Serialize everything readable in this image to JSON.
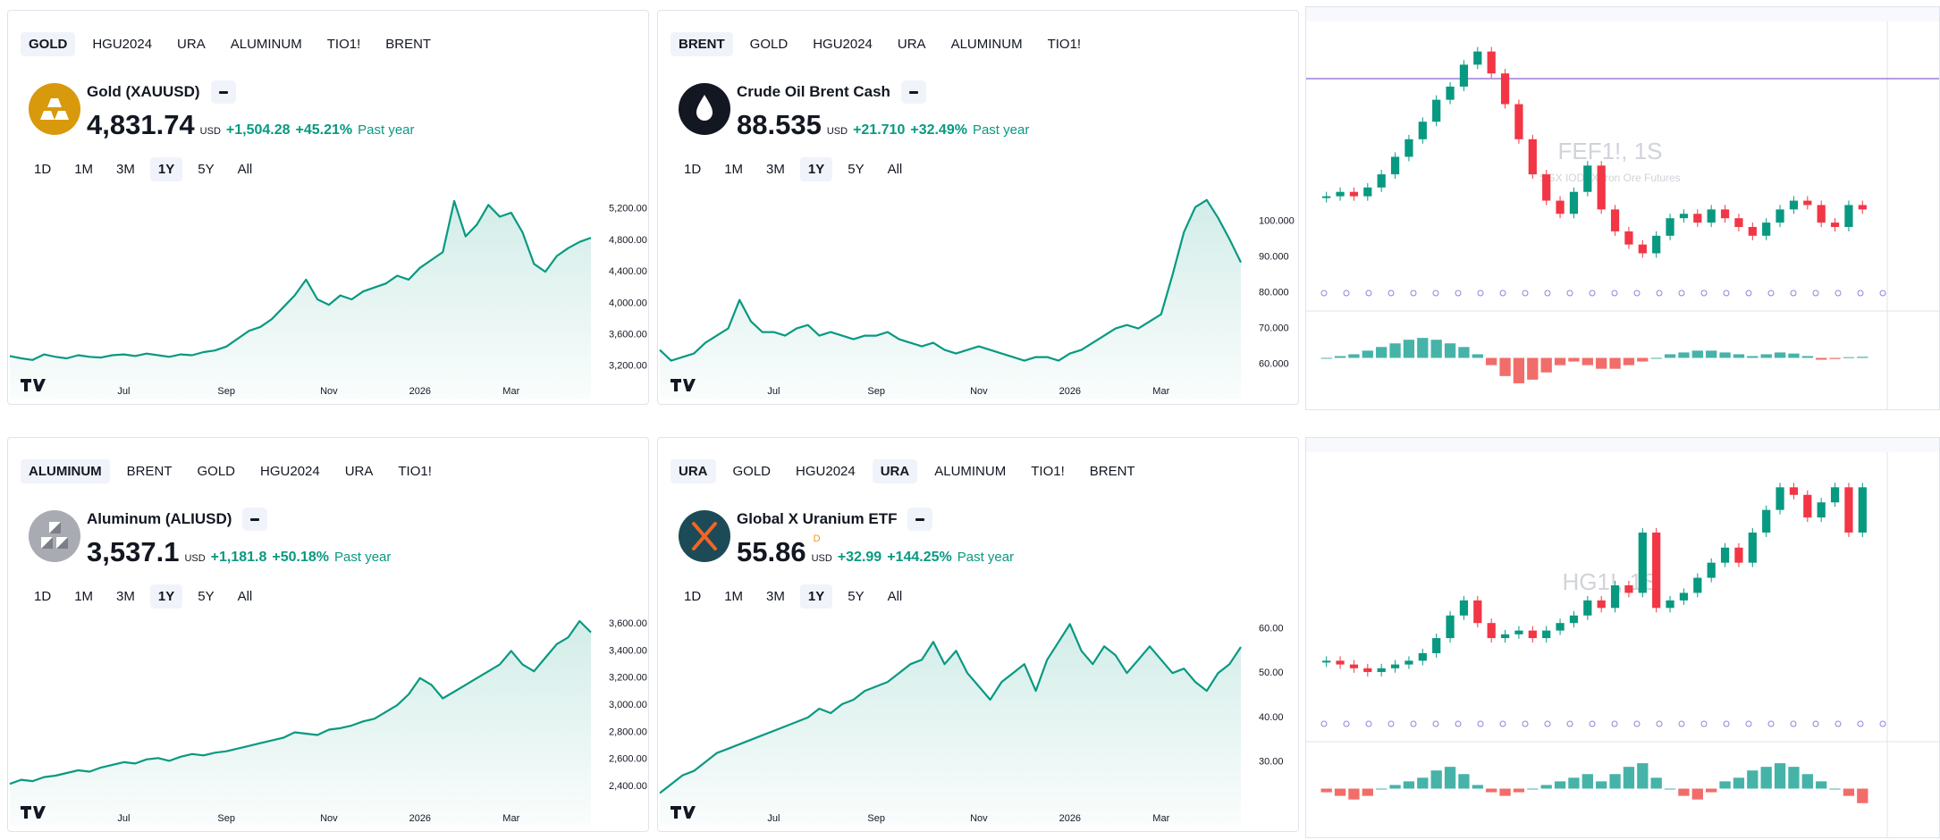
{
  "widgets": [
    {
      "tabs": [
        "GOLD",
        "HGU2024",
        "URA",
        "ALUMINUM",
        "TIO1!",
        "BRENT"
      ],
      "active_tabs": [
        0
      ],
      "name": "Gold (XAUUSD)",
      "price": "4,831.74",
      "currency": "USD",
      "change": "+1,504.28",
      "change_percent": "+45.21%",
      "period": "Past year",
      "ranges": [
        "1D",
        "1M",
        "3M",
        "1Y",
        "5Y",
        "All"
      ],
      "active_range": 3,
      "icon": "gold",
      "chart": {
        "type": "area",
        "color": "#089981",
        "categories": [
          null,
          null,
          null,
          null,
          null,
          null,
          null,
          null,
          null,
          null,
          "Jul",
          null,
          null,
          null,
          null,
          null,
          null,
          null,
          null,
          "Sep",
          null,
          null,
          null,
          null,
          null,
          null,
          null,
          null,
          "Nov",
          null,
          null,
          null,
          null,
          null,
          null,
          null,
          "2026",
          null,
          null,
          null,
          null,
          null,
          null,
          null,
          "Mar",
          null,
          null,
          null,
          null,
          null,
          null,
          null
        ],
        "values": [
          3330,
          3300,
          3280,
          3350,
          3320,
          3300,
          3340,
          3320,
          3310,
          3340,
          3350,
          3330,
          3360,
          3340,
          3320,
          3350,
          3340,
          3380,
          3400,
          3450,
          3550,
          3650,
          3700,
          3800,
          3950,
          4100,
          4300,
          4050,
          3980,
          4100,
          4050,
          4150,
          4200,
          4250,
          4350,
          4300,
          4450,
          4550,
          4650,
          5300,
          4850,
          5000,
          5250,
          5100,
          5150,
          4900,
          4500,
          4400,
          4600,
          4700,
          4780,
          4831.74
        ],
        "ylim": [
          3130,
          5480
        ],
        "yticks": [
          {
            "value": 3200,
            "label": "3,200.00"
          },
          {
            "value": 3600,
            "label": "3,600.00"
          },
          {
            "value": 4000,
            "label": "4,000.00"
          },
          {
            "value": 4400,
            "label": "4,400.00"
          },
          {
            "value": 4800,
            "label": "4,800.00"
          },
          {
            "value": 5200,
            "label": "5,200.00"
          }
        ]
      }
    },
    {
      "tabs": [
        "BRENT",
        "GOLD",
        "HGU2024",
        "URA",
        "ALUMINUM",
        "TIO1!"
      ],
      "active_tabs": [
        0
      ],
      "name": "Crude Oil Brent Cash",
      "price": "88.535",
      "currency": "USD",
      "change": "+21.710",
      "change_percent": "+32.49%",
      "period": "Past year",
      "ranges": [
        "1D",
        "1M",
        "3M",
        "1Y",
        "5Y",
        "All"
      ],
      "active_range": 3,
      "icon": "brent",
      "chart": {
        "type": "area",
        "color": "#089981",
        "categories": [
          null,
          null,
          null,
          null,
          null,
          null,
          null,
          null,
          null,
          null,
          "Jul",
          null,
          null,
          null,
          null,
          null,
          null,
          null,
          null,
          "Sep",
          null,
          null,
          null,
          null,
          null,
          null,
          null,
          null,
          "Nov",
          null,
          null,
          null,
          null,
          null,
          null,
          null,
          "2026",
          null,
          null,
          null,
          null,
          null,
          null,
          null,
          "Mar",
          null,
          null,
          null,
          null,
          null,
          null,
          null
        ],
        "values": [
          64,
          61,
          62,
          63,
          66,
          68,
          70,
          78,
          72,
          69,
          69,
          68,
          70,
          71,
          68,
          69,
          68,
          67,
          68,
          68,
          69,
          67,
          66,
          65,
          66,
          64,
          63,
          64,
          65,
          64,
          63,
          62,
          61,
          62,
          62,
          61,
          63,
          64,
          66,
          68,
          70,
          71,
          70,
          72,
          74,
          85,
          97,
          104,
          106,
          101,
          95,
          88.535
        ],
        "ylim": [
          57.9,
          109.7
        ],
        "yticks": [
          {
            "value": 60,
            "label": "60.000"
          },
          {
            "value": 70,
            "label": "70.000"
          },
          {
            "value": 80,
            "label": "80.000"
          },
          {
            "value": 90,
            "label": "90.000"
          },
          {
            "value": 100,
            "label": "100.000"
          }
        ]
      }
    },
    {
      "tabs": [
        "ALUMINUM",
        "BRENT",
        "GOLD",
        "HGU2024",
        "URA",
        "TIO1!"
      ],
      "active_tabs": [
        0
      ],
      "name": "Aluminum (ALIUSD)",
      "price": "3,537.1",
      "currency": "USD",
      "change": "+1,181.8",
      "change_percent": "+50.18%",
      "period": "Past year",
      "ranges": [
        "1D",
        "1M",
        "3M",
        "1Y",
        "5Y",
        "All"
      ],
      "active_range": 3,
      "icon": "aluminum",
      "chart": {
        "type": "area",
        "color": "#089981",
        "categories": [
          null,
          null,
          null,
          null,
          null,
          null,
          null,
          null,
          null,
          null,
          "Jul",
          null,
          null,
          null,
          null,
          null,
          null,
          null,
          null,
          "Sep",
          null,
          null,
          null,
          null,
          null,
          null,
          null,
          null,
          "Nov",
          null,
          null,
          null,
          null,
          null,
          null,
          null,
          "2026",
          null,
          null,
          null,
          null,
          null,
          null,
          null,
          "Mar",
          null,
          null,
          null,
          null,
          null,
          null,
          null
        ],
        "values": [
          2420,
          2450,
          2440,
          2470,
          2480,
          2500,
          2520,
          2510,
          2540,
          2560,
          2580,
          2570,
          2600,
          2610,
          2590,
          2620,
          2640,
          2630,
          2650,
          2660,
          2680,
          2700,
          2720,
          2740,
          2760,
          2800,
          2790,
          2780,
          2820,
          2830,
          2850,
          2880,
          2900,
          2950,
          3000,
          3080,
          3200,
          3150,
          3050,
          3100,
          3150,
          3200,
          3250,
          3300,
          3400,
          3300,
          3250,
          3350,
          3450,
          3500,
          3620,
          3537.1
        ],
        "ylim": [
          2309,
          3673
        ],
        "yticks": [
          {
            "value": 2400,
            "label": "2,400.00"
          },
          {
            "value": 2600,
            "label": "2,600.00"
          },
          {
            "value": 2800,
            "label": "2,800.00"
          },
          {
            "value": 3000,
            "label": "3,000.00"
          },
          {
            "value": 3200,
            "label": "3,200.00"
          },
          {
            "value": 3400,
            "label": "3,400.00"
          },
          {
            "value": 3600,
            "label": "3,600.00"
          }
        ]
      }
    },
    {
      "tabs": [
        "URA",
        "GOLD",
        "HGU2024",
        "URA",
        "ALUMINUM",
        "TIO1!",
        "BRENT"
      ],
      "active_tabs": [
        0,
        3
      ],
      "name": "Global X Uranium ETF",
      "price": "55.86",
      "badge": "D",
      "currency": "USD",
      "change": "+32.99",
      "change_percent": "+144.25%",
      "period": "Past year",
      "ranges": [
        "1D",
        "1M",
        "3M",
        "1Y",
        "5Y",
        "All"
      ],
      "active_range": 3,
      "icon": "ura",
      "chart": {
        "type": "area",
        "color": "#089981",
        "categories": [
          null,
          null,
          null,
          null,
          null,
          null,
          null,
          null,
          null,
          null,
          "Jul",
          null,
          null,
          null,
          null,
          null,
          null,
          null,
          null,
          "Sep",
          null,
          null,
          null,
          null,
          null,
          null,
          null,
          null,
          "Nov",
          null,
          null,
          null,
          null,
          null,
          null,
          null,
          "2026",
          null,
          null,
          null,
          null,
          null,
          null,
          null,
          "Mar",
          null,
          null,
          null,
          null,
          null,
          null,
          null
        ],
        "values": [
          23,
          25,
          27,
          28,
          30,
          32,
          33,
          34,
          35,
          36,
          37,
          38,
          39,
          40,
          42,
          41,
          43,
          44,
          46,
          47,
          48,
          50,
          52,
          53,
          57,
          52,
          55,
          50,
          47,
          44,
          48,
          50,
          52,
          46,
          53,
          57,
          61,
          55,
          52,
          56,
          54,
          50,
          53,
          56,
          53,
          50,
          51,
          48,
          46,
          50,
          52,
          55.86
        ],
        "ylim": [
          21.7,
          63.3
        ],
        "yticks": [
          {
            "value": 30,
            "label": "30.00"
          },
          {
            "value": 40,
            "label": "40.00"
          },
          {
            "value": 50,
            "label": "50.00"
          },
          {
            "value": 60,
            "label": "60.00"
          }
        ]
      }
    }
  ],
  "panels": [
    {
      "watermark": "FEF1!, 1S",
      "subtitle": "SGX IODEX Iron Ore Futures",
      "chart": {
        "type": "candles",
        "up_color": "#089981",
        "down_color": "#f23645",
        "values": [
          103,
          104,
          103,
          105,
          108,
          112,
          116,
          120,
          125,
          128,
          133,
          136,
          131,
          124,
          116,
          108,
          102,
          99,
          104,
          110,
          100,
          95,
          92,
          90,
          94,
          98,
          99,
          97,
          100,
          98,
          96,
          94,
          97,
          100,
          102,
          101,
          97,
          96,
          101,
          100
        ],
        "ylim": [
          85,
          140
        ],
        "macd": [
          0,
          0.5,
          1,
          2,
          3,
          4,
          5,
          5.5,
          5,
          4,
          3,
          1,
          -2,
          -5,
          -7,
          -6,
          -4,
          -2,
          -1,
          -2,
          -3,
          -3,
          -2,
          -1,
          0,
          1,
          1.5,
          2,
          2,
          1.5,
          1,
          0.5,
          1,
          1.5,
          1.2,
          0.5,
          -0.5,
          -0.3,
          0.2,
          0.3
        ],
        "macd_ylim": [
          -8,
          8
        ]
      }
    },
    {
      "watermark": "HG1!, 1S",
      "chart": {
        "type": "candles",
        "up_color": "#089981",
        "down_color": "#f23645",
        "values": [
          4.6,
          4.55,
          4.5,
          4.45,
          4.5,
          4.55,
          4.6,
          4.7,
          4.9,
          5.2,
          5.4,
          5.1,
          4.9,
          4.95,
          5.0,
          4.9,
          5.0,
          5.1,
          5.2,
          5.4,
          5.3,
          5.6,
          5.5,
          6.3,
          5.3,
          5.4,
          5.5,
          5.7,
          5.9,
          6.1,
          5.9,
          6.3,
          6.6,
          6.9,
          6.8,
          6.5,
          6.7,
          6.9,
          6.3,
          6.9
        ],
        "ylim": [
          4.0,
          7.2
        ],
        "macd": [
          -0.05,
          -0.1,
          -0.15,
          -0.1,
          0,
          0.05,
          0.1,
          0.15,
          0.25,
          0.3,
          0.2,
          0.05,
          -0.05,
          -0.1,
          -0.05,
          0,
          0.05,
          0.1,
          0.15,
          0.2,
          0.1,
          0.2,
          0.3,
          0.35,
          0.15,
          0,
          -0.1,
          -0.15,
          -0.05,
          0.1,
          0.15,
          0.25,
          0.3,
          0.35,
          0.3,
          0.2,
          0.1,
          0,
          -0.1,
          -0.2
        ],
        "macd_ylim": [
          -0.4,
          0.4
        ]
      }
    }
  ]
}
